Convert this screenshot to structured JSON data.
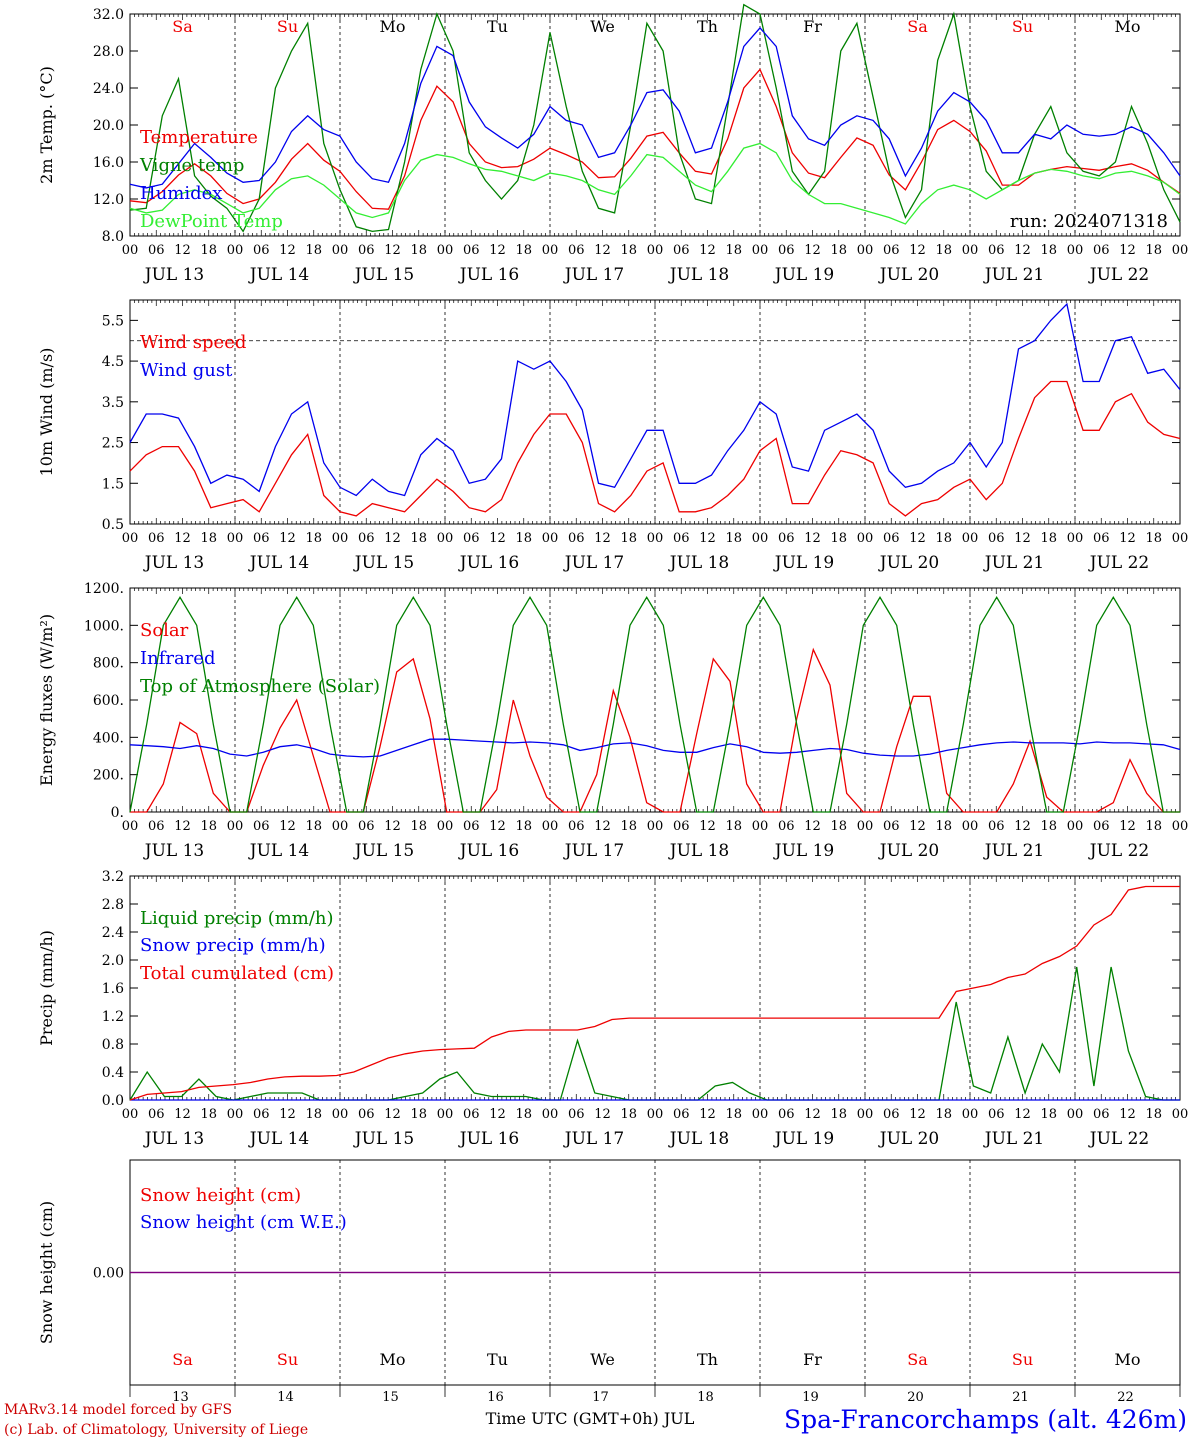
{
  "chart_data": [
    {
      "type": "line",
      "id": "temp",
      "ylabel": "2m Temp. (°C)",
      "ylim": [
        8.0,
        32.0
      ],
      "yticks": [
        "8.0",
        "12.0",
        "16.0",
        "20.0",
        "24.0",
        "28.0",
        "32.0"
      ],
      "days": [
        {
          "label": "Sa",
          "color": "#ee0000"
        },
        {
          "label": "Su",
          "color": "#ee0000"
        },
        {
          "label": "Mo",
          "color": "#000000"
        },
        {
          "label": "Tu",
          "color": "#000000"
        },
        {
          "label": "We",
          "color": "#000000"
        },
        {
          "label": "Th",
          "color": "#000000"
        },
        {
          "label": "Fr",
          "color": "#000000"
        },
        {
          "label": "Sa",
          "color": "#ee0000"
        },
        {
          "label": "Su",
          "color": "#ee0000"
        },
        {
          "label": "Mo",
          "color": "#000000"
        }
      ],
      "annotation": "run: 2024071318",
      "x_hours_step": 6,
      "series": [
        {
          "name": "Temperature",
          "color": "#ee0000",
          "values": [
            11.8,
            11.6,
            12.8,
            14.6,
            15.8,
            14.5,
            12.6,
            11.5,
            12.0,
            13.8,
            16.3,
            18.0,
            16.2,
            15.0,
            12.8,
            11.0,
            10.9,
            14.5,
            20.5,
            24.2,
            22.5,
            18.0,
            16.0,
            15.4,
            15.5,
            16.3,
            17.5,
            16.8,
            16.0,
            14.3,
            14.4,
            16.4,
            18.8,
            19.2,
            17.0,
            15.0,
            14.7,
            18.5,
            24.0,
            26.0,
            22.0,
            17.0,
            14.8,
            14.3,
            16.5,
            18.6,
            17.8,
            14.6,
            13.0,
            16.0,
            19.5,
            20.5,
            19.3,
            17.2,
            13.5,
            13.5,
            14.8,
            15.2,
            15.5,
            15.3,
            15.1,
            15.5,
            15.8,
            15.1,
            13.8,
            12.6
          ]
        },
        {
          "name": "Vigne temp",
          "color": "#008000",
          "values": [
            10.8,
            11.0,
            21.0,
            25.0,
            14.5,
            12.3,
            11.0,
            8.5,
            12.0,
            24.0,
            28.0,
            31.0,
            18.0,
            13.0,
            9.0,
            8.5,
            8.7,
            16.0,
            26.0,
            32.0,
            28.0,
            17.0,
            14.0,
            12.0,
            14.0,
            20.0,
            30.0,
            22.0,
            15.0,
            11.0,
            10.5,
            20.0,
            31.0,
            28.0,
            17.0,
            12.0,
            11.5,
            22.0,
            33.0,
            32.0,
            24.0,
            15.0,
            12.5,
            15.0,
            28.0,
            31.0,
            23.0,
            15.0,
            10.0,
            13.0,
            27.0,
            32.0,
            22.0,
            15.0,
            13.0,
            14.0,
            19.0,
            22.0,
            17.0,
            15.0,
            14.5,
            16.0,
            22.0,
            18.0,
            13.0,
            9.5
          ]
        },
        {
          "name": "Humidex",
          "color": "#0000ee",
          "values": [
            13.6,
            13.2,
            13.6,
            15.8,
            18.0,
            16.5,
            14.8,
            13.8,
            14.0,
            16.0,
            19.3,
            21.0,
            19.5,
            18.8,
            16.0,
            14.2,
            13.8,
            18.0,
            24.5,
            28.5,
            27.5,
            22.5,
            19.8,
            18.6,
            17.5,
            19.0,
            22.0,
            20.5,
            20.0,
            16.5,
            17.0,
            20.0,
            23.5,
            23.8,
            21.5,
            17.0,
            17.5,
            22.5,
            28.5,
            30.5,
            28.5,
            21.0,
            18.5,
            17.8,
            20.0,
            21.0,
            20.5,
            18.5,
            14.5,
            17.5,
            21.5,
            23.5,
            22.5,
            20.5,
            17.0,
            17.0,
            19.0,
            18.5,
            20.0,
            19.0,
            18.8,
            19.0,
            19.8,
            19.0,
            17.0,
            14.5
          ]
        },
        {
          "name": "DewPoint Temp",
          "color": "#33ee33",
          "values": [
            11.0,
            10.5,
            10.8,
            12.5,
            13.0,
            12.5,
            11.5,
            10.5,
            11.0,
            13.0,
            14.2,
            14.5,
            13.5,
            12.0,
            10.5,
            10.0,
            10.5,
            14.0,
            16.2,
            16.8,
            16.5,
            15.8,
            15.2,
            15.0,
            14.5,
            14.0,
            14.8,
            14.5,
            14.0,
            13.0,
            12.5,
            14.5,
            16.8,
            16.5,
            15.0,
            13.5,
            12.8,
            15.0,
            17.5,
            18.0,
            17.0,
            14.0,
            12.5,
            11.5,
            11.5,
            11.0,
            10.5,
            10.0,
            9.3,
            11.5,
            13.0,
            13.5,
            13.0,
            12.0,
            13.0,
            14.0,
            14.8,
            15.2,
            15.0,
            14.5,
            14.2,
            14.8,
            15.0,
            14.5,
            13.8,
            12.5
          ]
        }
      ]
    },
    {
      "type": "line",
      "id": "wind",
      "ylabel": "10m Wind (m/s)",
      "ylim": [
        0.5,
        6.0
      ],
      "yticks": [
        "0.5",
        "1.5",
        "2.5",
        "3.5",
        "4.5",
        "5.5"
      ],
      "reference_line": 5.0,
      "x_hours_step": 6,
      "series": [
        {
          "name": "Wind speed",
          "color": "#ee0000",
          "values": [
            1.8,
            2.2,
            2.4,
            2.4,
            1.8,
            0.9,
            1.0,
            1.1,
            0.8,
            1.5,
            2.2,
            2.7,
            1.2,
            0.8,
            0.7,
            1.0,
            0.9,
            0.8,
            1.2,
            1.6,
            1.3,
            0.9,
            0.8,
            1.1,
            2.0,
            2.7,
            3.2,
            3.2,
            2.5,
            1.0,
            0.8,
            1.2,
            1.8,
            2.0,
            0.8,
            0.8,
            0.9,
            1.2,
            1.6,
            2.3,
            2.6,
            1.0,
            1.0,
            1.7,
            2.3,
            2.2,
            2.0,
            1.0,
            0.7,
            1.0,
            1.1,
            1.4,
            1.6,
            1.1,
            1.5,
            2.6,
            3.6,
            4.0,
            4.0,
            2.8,
            2.8,
            3.5,
            3.7,
            3.0,
            2.7,
            2.6
          ]
        },
        {
          "name": "Wind gust",
          "color": "#0000ee",
          "values": [
            2.5,
            3.2,
            3.2,
            3.1,
            2.4,
            1.5,
            1.7,
            1.6,
            1.3,
            2.4,
            3.2,
            3.5,
            2.0,
            1.4,
            1.2,
            1.6,
            1.3,
            1.2,
            2.2,
            2.6,
            2.3,
            1.5,
            1.6,
            2.1,
            4.5,
            4.3,
            4.5,
            4.0,
            3.3,
            1.5,
            1.4,
            2.1,
            2.8,
            2.8,
            1.5,
            1.5,
            1.7,
            2.3,
            2.8,
            3.5,
            3.2,
            1.9,
            1.8,
            2.8,
            3.0,
            3.2,
            2.8,
            1.8,
            1.4,
            1.5,
            1.8,
            2.0,
            2.5,
            1.9,
            2.5,
            4.8,
            5.0,
            5.5,
            5.9,
            4.0,
            4.0,
            5.0,
            5.1,
            4.2,
            4.3,
            3.8
          ]
        }
      ]
    },
    {
      "type": "line",
      "id": "flux",
      "ylabel": "Energy fluxes (W/m²)",
      "ylim": [
        0,
        1200
      ],
      "yticks": [
        "0.",
        "200.",
        "400.",
        "600.",
        "800.",
        "1000.",
        "1200."
      ],
      "x_hours_step": 6,
      "series": [
        {
          "name": "Solar",
          "color": "#ee0000",
          "values": [
            0,
            0,
            150,
            480,
            420,
            100,
            0,
            0,
            250,
            450,
            600,
            300,
            0,
            0,
            0,
            350,
            750,
            820,
            500,
            0,
            0,
            0,
            120,
            600,
            300,
            80,
            0,
            0,
            200,
            650,
            400,
            50,
            0,
            0,
            420,
            820,
            700,
            150,
            0,
            0,
            500,
            870,
            680,
            100,
            0,
            0,
            350,
            620,
            620,
            100,
            0,
            0,
            0,
            150,
            380,
            80,
            0,
            0,
            0,
            50,
            280,
            100,
            0,
            0
          ]
        },
        {
          "name": "Infrared",
          "color": "#0000ee",
          "values": [
            360,
            355,
            350,
            340,
            355,
            340,
            310,
            300,
            320,
            350,
            360,
            340,
            310,
            300,
            295,
            300,
            330,
            360,
            390,
            390,
            385,
            380,
            375,
            370,
            375,
            370,
            360,
            330,
            345,
            365,
            370,
            355,
            330,
            320,
            320,
            345,
            365,
            350,
            320,
            315,
            320,
            330,
            340,
            335,
            315,
            305,
            300,
            300,
            310,
            330,
            345,
            360,
            370,
            375,
            370,
            370,
            370,
            365,
            375,
            370,
            370,
            365,
            360,
            335
          ]
        },
        {
          "name": "Top of Atmosphere (Solar)",
          "color": "#008000",
          "values": [
            0,
            470,
            1000,
            1150,
            1000,
            470,
            0,
            0,
            470,
            1000,
            1150,
            1000,
            470,
            0,
            0,
            470,
            1000,
            1150,
            1000,
            470,
            0,
            0,
            470,
            1000,
            1150,
            1000,
            470,
            0,
            0,
            470,
            1000,
            1150,
            1000,
            470,
            0,
            0,
            470,
            1000,
            1150,
            1000,
            470,
            0,
            0,
            470,
            1000,
            1150,
            1000,
            470,
            0,
            0,
            470,
            1000,
            1150,
            1000,
            470,
            0,
            0,
            470,
            1000,
            1150,
            1000,
            470,
            0,
            0
          ]
        }
      ]
    },
    {
      "type": "line",
      "id": "precip",
      "ylabel": "Precip (mm/h)",
      "ylim": [
        0.0,
        3.2
      ],
      "yticks": [
        "0.0",
        "0.4",
        "0.8",
        "1.2",
        "1.6",
        "2.0",
        "2.4",
        "2.8",
        "3.2"
      ],
      "x_hours_step": 6,
      "series": [
        {
          "name": "Liquid precip (mm/h)",
          "color": "#008000",
          "values": [
            0.0,
            0.4,
            0.05,
            0.05,
            0.3,
            0.05,
            0.0,
            0.05,
            0.1,
            0.1,
            0.1,
            0.0,
            0.0,
            0.0,
            0.0,
            0.0,
            0.05,
            0.1,
            0.3,
            0.4,
            0.1,
            0.05,
            0.05,
            0.05,
            0.0,
            0.0,
            0.85,
            0.1,
            0.05,
            0.0,
            0.0,
            0.0,
            0.0,
            0.0,
            0.2,
            0.25,
            0.1,
            0.0,
            0.0,
            0.0,
            0.0,
            0.0,
            0.0,
            0.0,
            0.0,
            0.0,
            0.0,
            0.0,
            1.4,
            0.2,
            0.1,
            0.9,
            0.1,
            0.8,
            0.4,
            1.9,
            0.2,
            1.9,
            0.7,
            0.05,
            0.0,
            0.0
          ]
        },
        {
          "name": "Snow precip (mm/h)",
          "color": "#0000ee",
          "values": [
            0,
            0,
            0,
            0,
            0,
            0,
            0,
            0,
            0,
            0,
            0,
            0,
            0,
            0,
            0,
            0,
            0,
            0,
            0,
            0,
            0,
            0,
            0,
            0,
            0,
            0,
            0,
            0,
            0,
            0,
            0,
            0,
            0,
            0,
            0,
            0,
            0,
            0,
            0,
            0,
            0,
            0,
            0,
            0,
            0,
            0,
            0,
            0,
            0,
            0,
            0,
            0,
            0,
            0,
            0,
            0,
            0,
            0,
            0,
            0,
            0,
            0
          ]
        },
        {
          "name": "Total cumulated (cm)",
          "color": "#ee0000",
          "values": [
            0.0,
            0.08,
            0.1,
            0.12,
            0.18,
            0.2,
            0.22,
            0.25,
            0.3,
            0.33,
            0.34,
            0.34,
            0.35,
            0.4,
            0.5,
            0.6,
            0.66,
            0.7,
            0.72,
            0.73,
            0.74,
            0.9,
            0.98,
            1.0,
            1.0,
            1.0,
            1.0,
            1.05,
            1.15,
            1.17,
            1.17,
            1.17,
            1.17,
            1.17,
            1.17,
            1.17,
            1.17,
            1.17,
            1.17,
            1.17,
            1.17,
            1.17,
            1.17,
            1.17,
            1.17,
            1.17,
            1.17,
            1.17,
            1.55,
            1.6,
            1.65,
            1.75,
            1.8,
            1.95,
            2.05,
            2.2,
            2.5,
            2.65,
            3.0,
            3.05,
            3.05,
            3.05
          ]
        }
      ]
    },
    {
      "type": "line",
      "id": "snow",
      "ylabel": "Snow height (cm)",
      "yticks": [
        "0.00"
      ],
      "series": [
        {
          "name": "Snow height (cm)",
          "color": "#ee0000",
          "values": [
            0.0,
            0.0
          ]
        },
        {
          "name": "Snow height (cm W.E.)",
          "color": "#0000ee",
          "values": [
            0.0,
            0.0
          ]
        }
      ],
      "xlabel": "Time UTC (GMT+0h) JUL",
      "day_numbers": [
        "13",
        "14",
        "15",
        "16",
        "17",
        "18",
        "19",
        "20",
        "21",
        "22"
      ]
    }
  ],
  "dates": [
    "JUL 13",
    "JUL 14",
    "JUL 15",
    "JUL 16",
    "JUL 17",
    "JUL 18",
    "JUL 19",
    "JUL 20",
    "JUL 21",
    "JUL 22"
  ],
  "hour_ticks": [
    "00",
    "06",
    "12",
    "18"
  ],
  "footer": {
    "credit_line1": "MARv3.14 model forced by GFS",
    "credit_line2": "(c) Lab. of Climatology, University of Liege",
    "station": "Spa-Francorchamps (alt. 426m)"
  },
  "colors": {
    "red": "#ee0000",
    "green": "#008000",
    "blue": "#0000ee",
    "lightgreen": "#33ee33",
    "purple": "#800080"
  }
}
